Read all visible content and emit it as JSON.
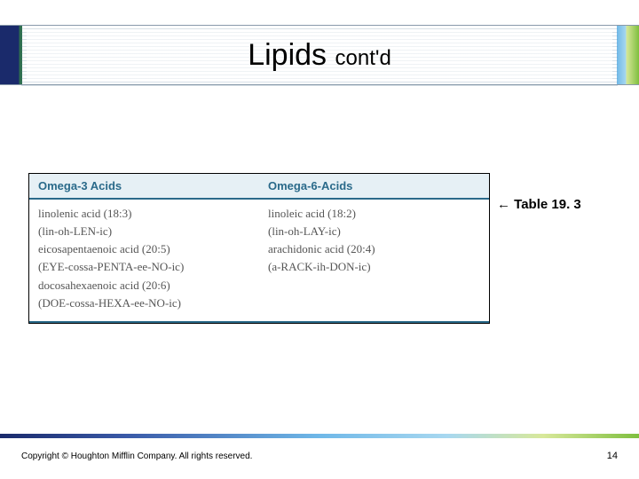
{
  "title": {
    "main": "Lipids",
    "sub": "cont'd"
  },
  "table": {
    "headers": [
      "Omega-3 Acids",
      "Omega-6-Acids"
    ],
    "col1": [
      "linolenic acid (18:3)",
      "(lin-oh-LEN-ic)",
      "eicosapentaenoic acid (20:5)",
      "(EYE-cossa-PENTA-ee-NO-ic)",
      "docosahexaenoic acid (20:6)",
      "(DOE-cossa-HEXA-ee-NO-ic)"
    ],
    "col2": [
      "linoleic acid (18:2)",
      "(lin-oh-LAY-ic)",
      "arachidonic acid (20:4)",
      "(a-RACK-ih-DON-ic)"
    ]
  },
  "caption": "←  Table 19. 3",
  "copyright": "Copyright © Houghton Mifflin Company. All rights reserved.",
  "pagenum": "14"
}
